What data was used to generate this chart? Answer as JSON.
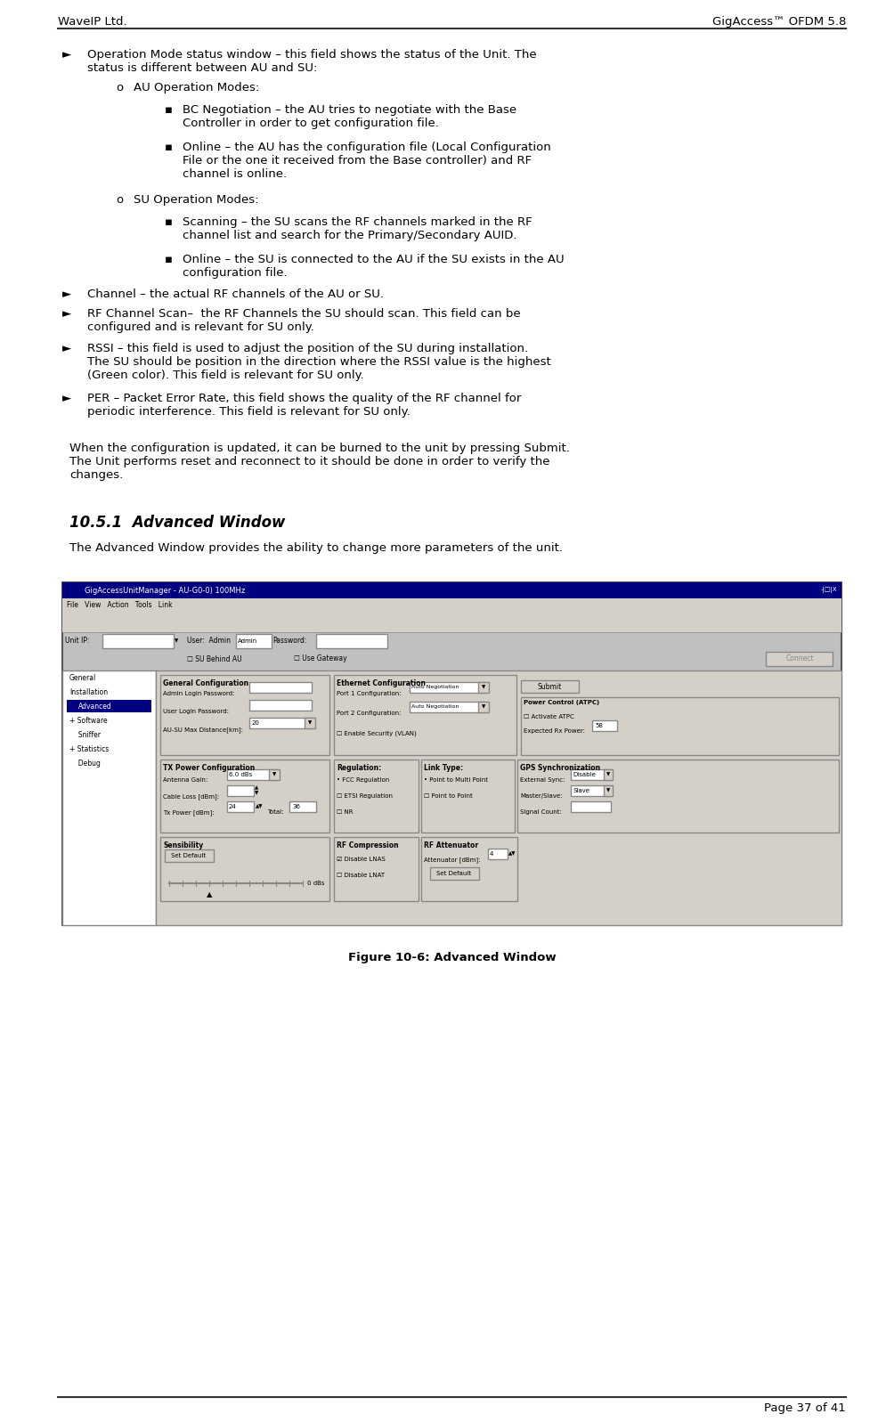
{
  "header_left": "WaveIP Ltd.",
  "header_right": "GigAccess™ OFDM 5.8",
  "footer_right": "Page 37 of 41",
  "section_title": "10.5.1  Advanced Window",
  "section_intro": "The Advanced Window provides the ability to change more parameters of the unit.",
  "figure_caption": "Figure 10-6: Advanced Window",
  "paragraph_before_section": "When the configuration is updated, it can be burned to the unit by pressing Submit.\nThe Unit performs reset and reconnect to it should be done in order to verify the\nchanges.",
  "bullet1_text": "Operation Mode status window – this field shows the status of the Unit. The\nstatus is different between AU and SU:",
  "bullet1_au_header": "AU Operation Modes:",
  "bullet1_bc": "BC Negotiation – the AU tries to negotiate with the Base\nController in order to get configuration file.",
  "bullet1_online_au": "Online – the AU has the configuration file (Local Configuration\nFile or the one it received from the Base controller) and RF\nchannel is online.",
  "bullet1_su_header": "SU Operation Modes:",
  "bullet1_scanning": "Scanning – the SU scans the RF channels marked in the RF\nchannel list and search for the Primary/Secondary AUID.",
  "bullet1_online_su": "Online – the SU is connected to the AU if the SU exists in the AU\nconfiguration file.",
  "bullet2_text": "Channel – the actual RF channels of the AU or SU.",
  "bullet3_text1": "RF Channel Scan–  the RF Channels the SU should scan. This field can be\nconfigured and is relevant for ",
  "bullet3_bold": "SU only",
  "bullet3_text2": ".",
  "bullet4_text1": "RSSI – this field is used to adjust the position of the SU during installation.\nThe SU should be position in the direction where the RSSI value is the highest\n(Green color). This field is relevant for ",
  "bullet4_bold": "SU only",
  "bullet4_text2": ".",
  "bullet5_text1": "PER – Packet Error Rate, this field shows the quality of the RF channel for\nperiodic interference. This field is relevant for ",
  "bullet5_bold": "SU only",
  "bullet5_text2": ".",
  "background_color": "#ffffff",
  "text_color": "#000000",
  "header_font_size": 9.5,
  "body_font_size": 9.5,
  "section_title_font_size": 12,
  "footer_font_size": 9.5
}
